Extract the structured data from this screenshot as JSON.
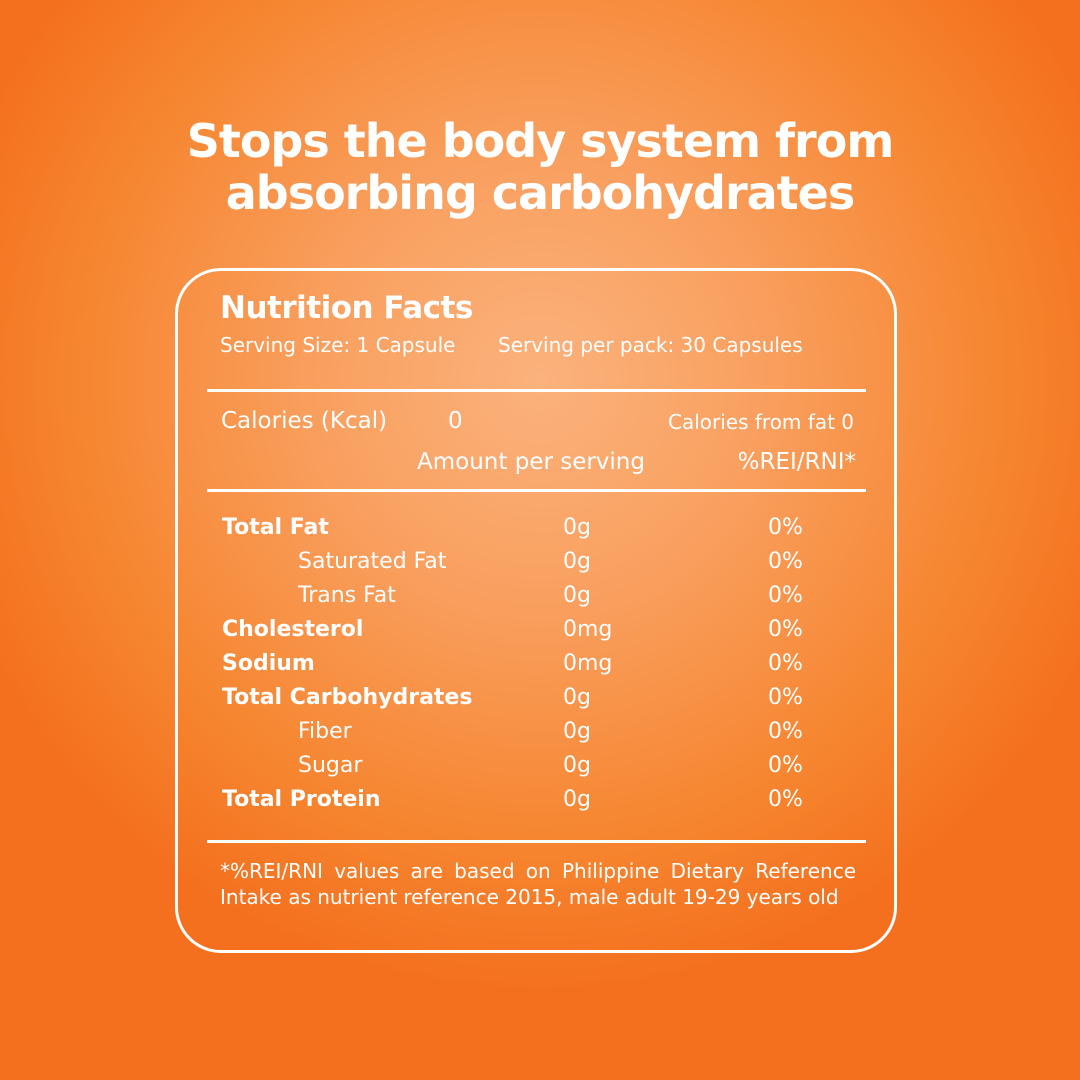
{
  "headline": [
    "Stops the body system from",
    "absorbing carbohydrates"
  ],
  "title": "Nutrition Facts",
  "serving_size": "Serving Size: 1 Capsule",
  "serving_per_pack": "Serving per pack: 30 Capsules",
  "calories_label": "Calories (Kcal)",
  "calories_value": "0",
  "calories_from_fat": "Calories from fat 0",
  "amount_header": "Amount per serving",
  "rni_header": "%REI/RNI*",
  "rows": [
    {
      "name": "Total Fat",
      "amount": "0g",
      "pct": "0%",
      "bold": true,
      "indent": false
    },
    {
      "name": "Saturated Fat",
      "amount": "0g",
      "pct": "0%",
      "bold": false,
      "indent": true
    },
    {
      "name": "Trans Fat",
      "amount": "0g",
      "pct": "0%",
      "bold": false,
      "indent": true
    },
    {
      "name": "Cholesterol",
      "amount": "0mg",
      "pct": "0%",
      "bold": true,
      "indent": false
    },
    {
      "name": "Sodium",
      "amount": "0mg",
      "pct": "0%",
      "bold": true,
      "indent": false
    },
    {
      "name": "Total Carbohydrates",
      "amount": "0g",
      "pct": "0%",
      "bold": true,
      "indent": false
    },
    {
      "name": "Fiber",
      "amount": "0g",
      "pct": "0%",
      "bold": false,
      "indent": true
    },
    {
      "name": "Sugar",
      "amount": "0g",
      "pct": "0%",
      "bold": false,
      "indent": true
    },
    {
      "name": "Total Protein",
      "amount": "0g",
      "pct": "0%",
      "bold": true,
      "indent": false
    }
  ],
  "footnote": "*%REI/RNI values are based on Philippine Dietary Reference Intake as nutrient reference 2015, male adult 19-29 years old"
}
